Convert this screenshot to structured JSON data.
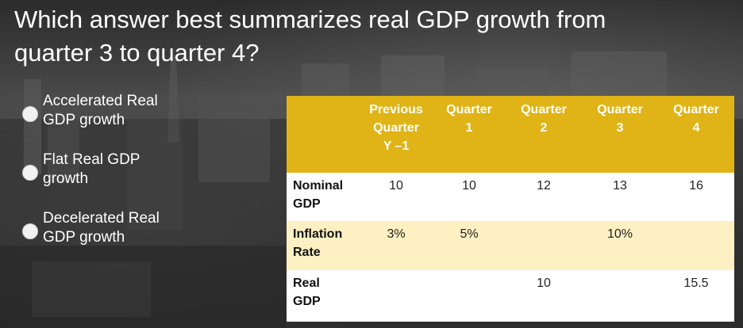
{
  "question": {
    "line1": "Which answer best summarizes real GDP growth from",
    "line2": "quarter 3 to quarter 4?"
  },
  "options": [
    {
      "line1": "Accelerated Real",
      "line2": "GDP growth"
    },
    {
      "line1": "Flat Real GDP",
      "line2": "growth"
    },
    {
      "line1": "Decelerated Real",
      "line2": "GDP growth"
    }
  ],
  "table": {
    "headers": [
      {
        "line1": "",
        "line2": "",
        "line3": ""
      },
      {
        "line1": "Previous",
        "line2": "Quarter",
        "line3": "Y –1"
      },
      {
        "line1": "Quarter",
        "line2": "1",
        "line3": ""
      },
      {
        "line1": "Quarter",
        "line2": "2",
        "line3": ""
      },
      {
        "line1": "Quarter",
        "line2": "3",
        "line3": ""
      },
      {
        "line1": "Quarter",
        "line2": "4",
        "line3": ""
      }
    ],
    "rows": [
      {
        "label1": "Nominal",
        "label2": "GDP",
        "cells": [
          "10",
          "10",
          "12",
          "13",
          "16"
        ]
      },
      {
        "label1": "Inflation",
        "label2": "Rate",
        "cells": [
          "3%",
          "5%",
          "",
          "10%",
          ""
        ]
      },
      {
        "label1": "Real",
        "label2": "GDP",
        "cells": [
          "",
          "",
          "10",
          "",
          "15.5"
        ]
      }
    ]
  },
  "colors": {
    "header_bg": "#e0b416",
    "row_white": "#ffffff",
    "row_cream": "#fdf0c2",
    "text_white": "#ffffff"
  }
}
